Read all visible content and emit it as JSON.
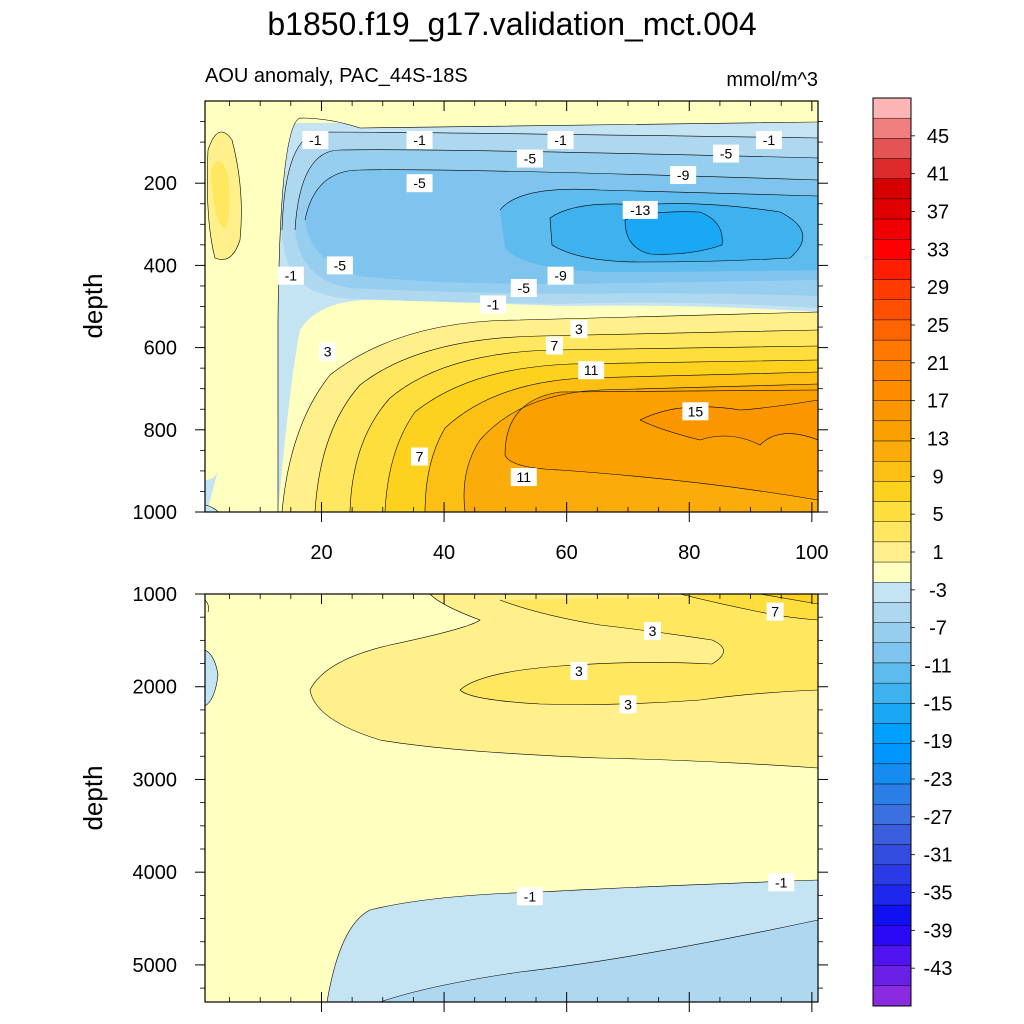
{
  "figure": {
    "title": "b1850.f19_g17.validation_mct.004",
    "left_label": "AOU anomaly, PAC_44S-18S",
    "units": "mmol/m^3"
  },
  "chart_data": [
    {
      "type": "contour",
      "panel": "upper",
      "x_range": [
        1,
        101
      ],
      "y_range": [
        0,
        1000
      ],
      "y_inverted": true,
      "x_ticks": [
        20,
        40,
        60,
        80,
        100
      ],
      "x_tick_labels": [
        "20",
        "40",
        "60",
        "80",
        "100"
      ],
      "y_ticks": [
        200,
        400,
        600,
        800,
        1000
      ],
      "y_tick_labels": [
        "200",
        "400",
        "600",
        "800",
        "1000"
      ],
      "ylabel": "depth",
      "contour_labels": [
        {
          "text": "-1",
          "x": 19,
          "y": 95
        },
        {
          "text": "-1",
          "x": 36,
          "y": 95
        },
        {
          "text": "-1",
          "x": 59,
          "y": 95
        },
        {
          "text": "-1",
          "x": 93,
          "y": 95
        },
        {
          "text": "-5",
          "x": 54,
          "y": 140
        },
        {
          "text": "-5",
          "x": 86,
          "y": 128
        },
        {
          "text": "-5",
          "x": 36,
          "y": 200
        },
        {
          "text": "-9",
          "x": 79,
          "y": 180
        },
        {
          "text": "-13",
          "x": 72,
          "y": 265
        },
        {
          "text": "-1",
          "x": 15,
          "y": 425
        },
        {
          "text": "-5",
          "x": 23,
          "y": 400
        },
        {
          "text": "-5",
          "x": 53,
          "y": 455
        },
        {
          "text": "-9",
          "x": 59,
          "y": 425
        },
        {
          "text": "-1",
          "x": 48,
          "y": 495
        },
        {
          "text": "3",
          "x": 62,
          "y": 555
        },
        {
          "text": "3",
          "x": 21,
          "y": 610
        },
        {
          "text": "7",
          "x": 58,
          "y": 595
        },
        {
          "text": "11",
          "x": 64,
          "y": 655
        },
        {
          "text": "15",
          "x": 81,
          "y": 755
        },
        {
          "text": "7",
          "x": 36,
          "y": 865
        },
        {
          "text": "11",
          "x": 53,
          "y": 915
        }
      ]
    },
    {
      "type": "contour",
      "panel": "lower",
      "x_range": [
        1,
        101
      ],
      "y_range": [
        1000,
        5400
      ],
      "y_inverted": true,
      "x_ticks": [
        20,
        40,
        60,
        80,
        100
      ],
      "y_ticks": [
        1000,
        2000,
        3000,
        4000,
        5000
      ],
      "y_tick_labels": [
        "1000",
        "2000",
        "3000",
        "4000",
        "5000"
      ],
      "ylabel": "depth",
      "contour_labels": [
        {
          "text": "7",
          "x": 94,
          "y": 1190
        },
        {
          "text": "3",
          "x": 74,
          "y": 1400
        },
        {
          "text": "3",
          "x": 62,
          "y": 1830
        },
        {
          "text": "3",
          "x": 70,
          "y": 2190
        },
        {
          "text": "-1",
          "x": 54,
          "y": 4260
        },
        {
          "text": "-1",
          "x": 95,
          "y": 4110
        }
      ]
    },
    {
      "type": "colorbar",
      "labels": [
        "45",
        "41",
        "37",
        "33",
        "29",
        "25",
        "21",
        "17",
        "13",
        "9",
        "5",
        "1",
        "-3",
        "-7",
        "-11",
        "-15",
        "-19",
        "-23",
        "-27",
        "-31",
        "-35",
        "-39",
        "-43"
      ],
      "colors": [
        "#fcb4b4",
        "#f08080",
        "#e55454",
        "#dd2a2a",
        "#d60000",
        "#e00000",
        "#f00000",
        "#ff0000",
        "#ff1e00",
        "#ff3c00",
        "#ff5000",
        "#ff6400",
        "#ff7800",
        "#ff8200",
        "#ff8c00",
        "#fa9600",
        "#faa000",
        "#fbac0b",
        "#fcc015",
        "#fdd21e",
        "#fede3c",
        "#ffe860",
        "#fff08c",
        "#ffffc0",
        "#c4e4f4",
        "#aed8f0",
        "#96ceef",
        "#7ec4ee",
        "#5ebbee",
        "#3db2ef",
        "#1aa8f4",
        "#00a0ff",
        "#0096ff",
        "#148cf0",
        "#2a7ee6",
        "#3a70e0",
        "#3a5ede",
        "#324ce0",
        "#2a3ae6",
        "#1e28ec",
        "#1010f0",
        "#2a0af6",
        "#5014f0",
        "#6a20e6",
        "#8a2be2"
      ]
    }
  ]
}
